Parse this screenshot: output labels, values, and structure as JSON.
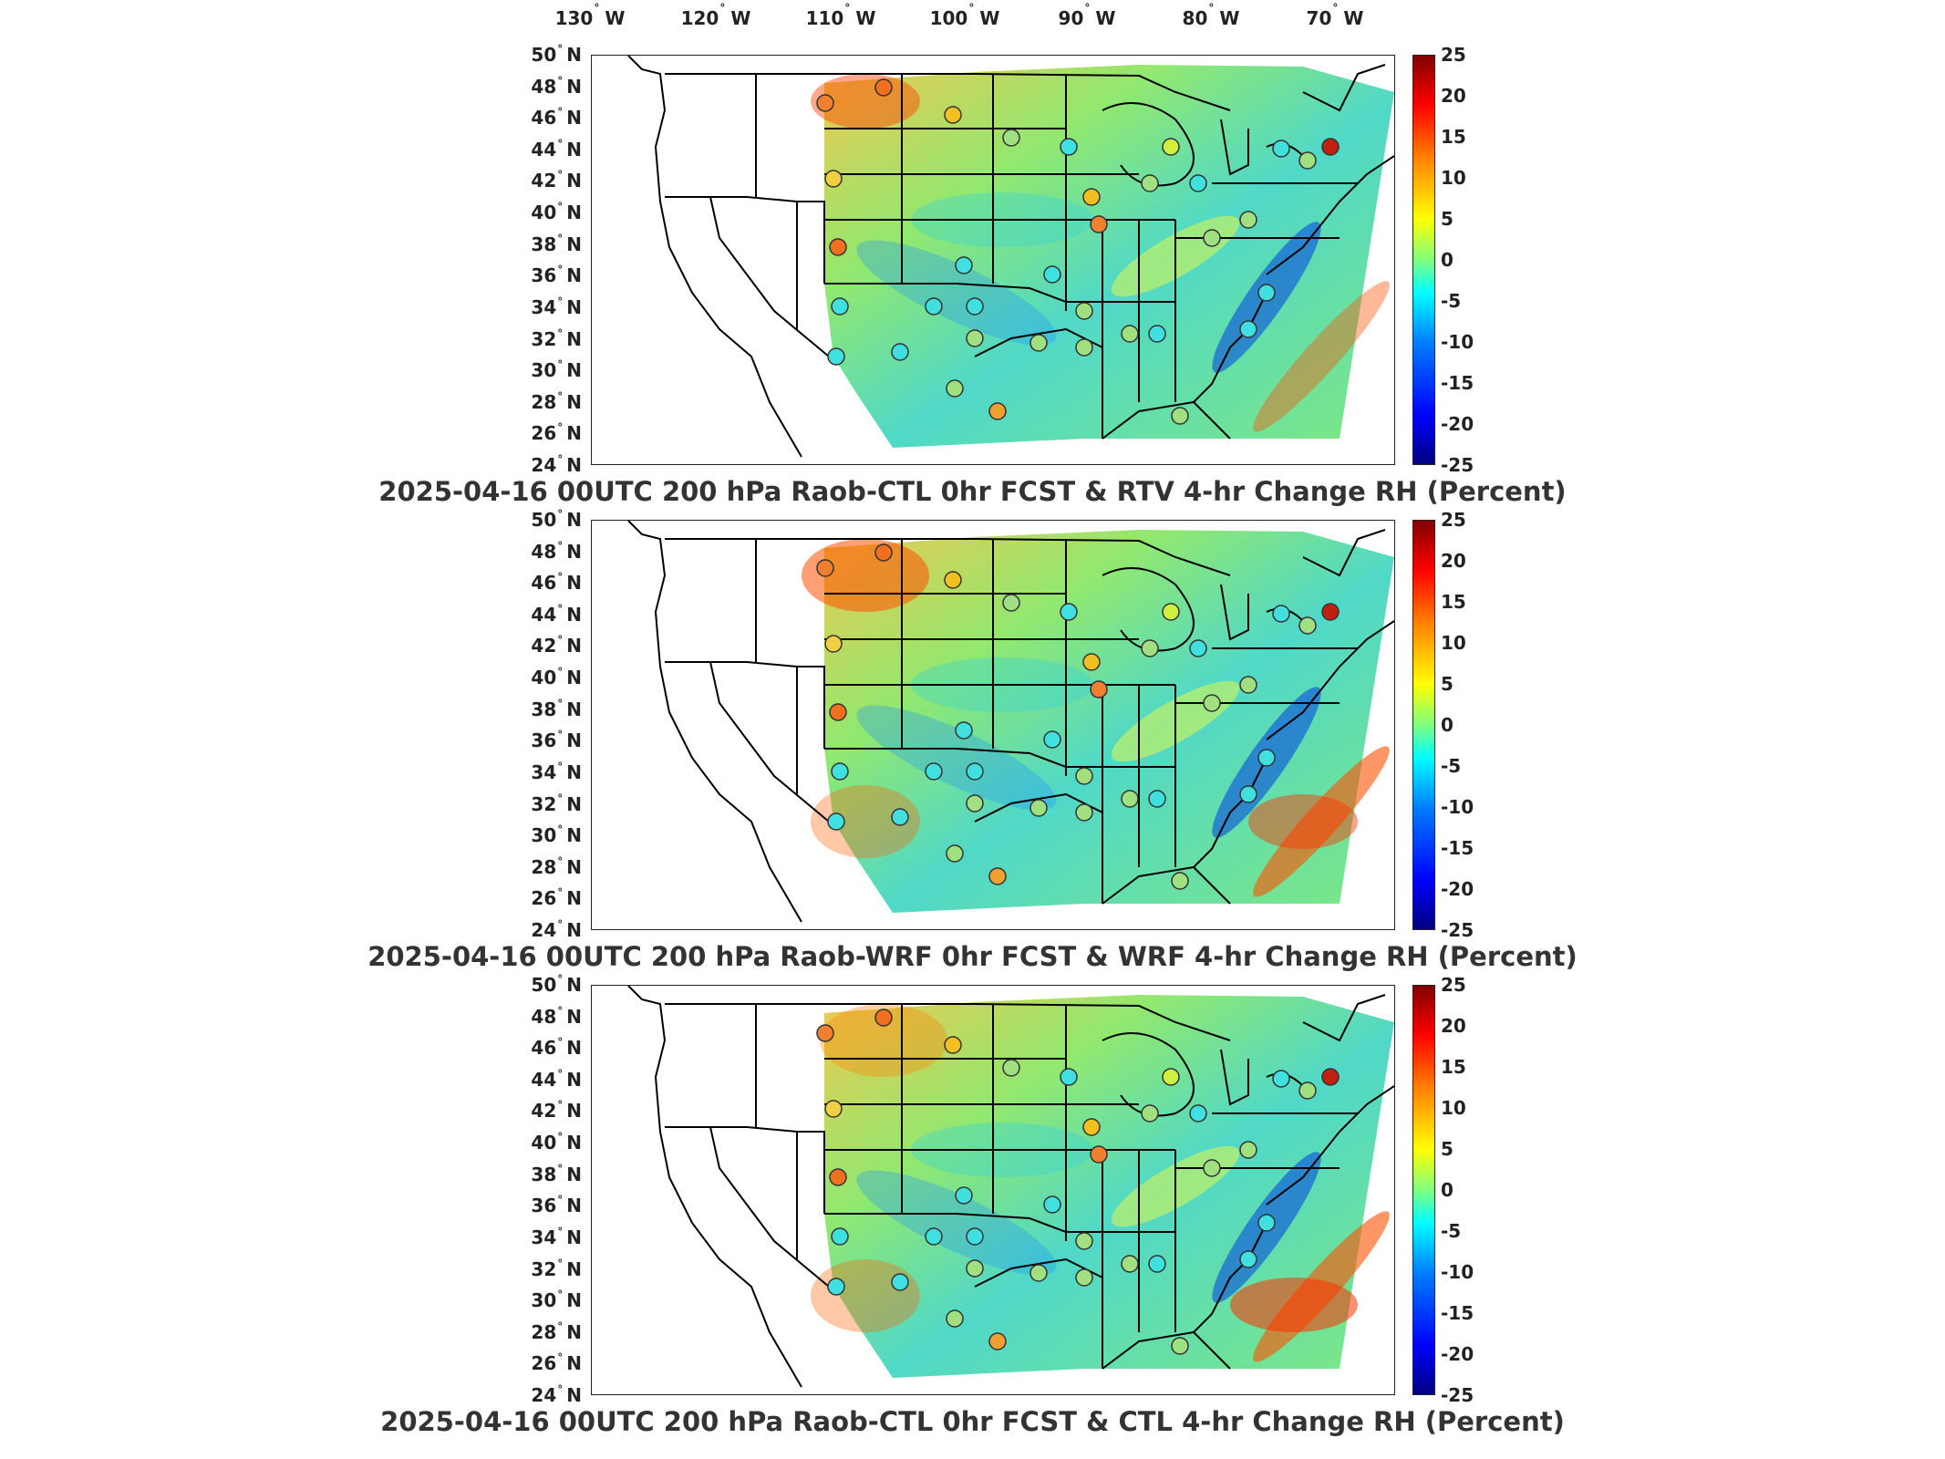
{
  "lon_labels": [
    {
      "value": "130",
      "dir": "W"
    },
    {
      "value": "120",
      "dir": "W"
    },
    {
      "value": "110",
      "dir": "W"
    },
    {
      "value": "100",
      "dir": "W"
    },
    {
      "value": "90",
      "dir": "W"
    },
    {
      "value": "80",
      "dir": "W"
    },
    {
      "value": "70",
      "dir": "W"
    }
  ],
  "lat_labels": [
    "50",
    "48",
    "46",
    "44",
    "42",
    "40",
    "38",
    "36",
    "34",
    "32",
    "30",
    "28",
    "26",
    "24"
  ],
  "lat_dir": "N",
  "deg_symbol": "°",
  "colorbar_ticks": [
    "25",
    "20",
    "15",
    "10",
    "5",
    "0",
    "-5",
    "-10",
    "-15",
    "-20",
    "-25"
  ],
  "colorbar_colors": [
    "#00007f",
    "#0000ff",
    "#0080ff",
    "#00ffff",
    "#80ff80",
    "#ffff00",
    "#ff8000",
    "#ff0000",
    "#800000"
  ],
  "panels": [
    {
      "title": "2025-04-16 00UTC 200 hPa Raob-CTL 0hr FCST & RTV 4-hr Change RH (Percent)"
    },
    {
      "title": "2025-04-16 00UTC 200 hPa Raob-WRF 0hr FCST & WRF 4-hr Change RH (Percent)"
    },
    {
      "title": "2025-04-16 00UTC 200 hPa Raob-CTL 0hr FCST & CTL 4-hr Change RH (Percent)"
    }
  ]
}
